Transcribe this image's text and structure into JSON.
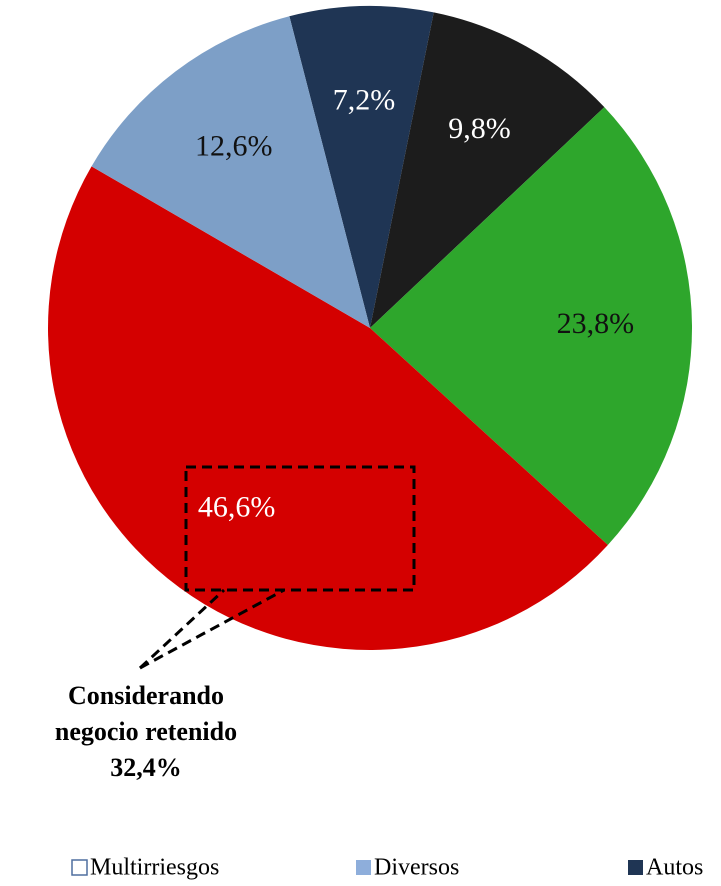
{
  "chart_data": {
    "type": "pie",
    "values": [
      7.2,
      9.8,
      23.8,
      46.6,
      12.6
    ],
    "value_labels": [
      "7,2%",
      "9,8%",
      "23,8%",
      "46,6%",
      "12,6%"
    ],
    "colors": [
      "#1f3554",
      "#1c1c1c",
      "#2ea62c",
      "#d40000",
      "#7d9fc7"
    ],
    "annotation": [
      "Considerando",
      "negocio retenido",
      "32,4%"
    ],
    "legend": [
      {
        "name": "Multirriesgos",
        "color": "none"
      },
      {
        "name": "Diversos",
        "color": "#8eaedb"
      },
      {
        "name": "Autos",
        "color": "#1f3554"
      }
    ]
  }
}
